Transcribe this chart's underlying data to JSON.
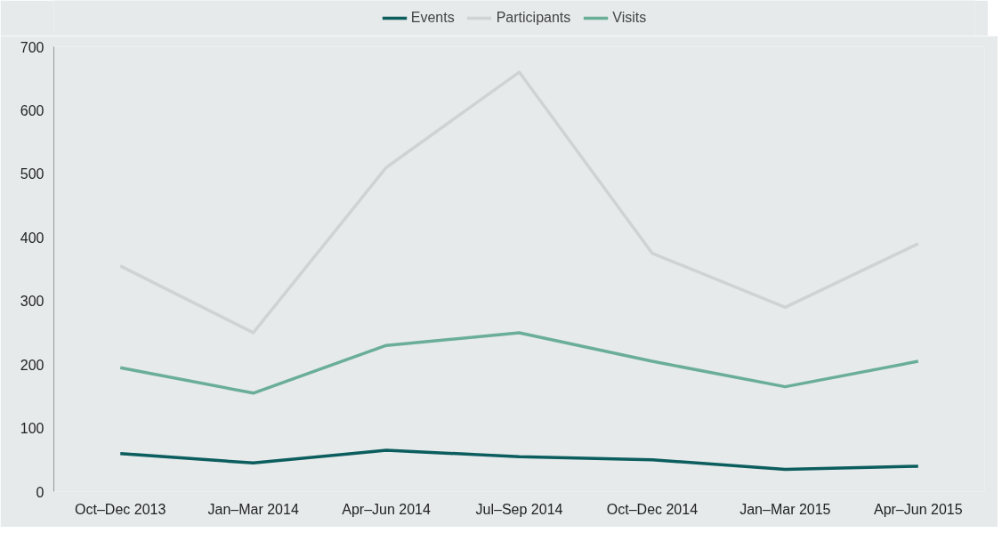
{
  "chart_data": {
    "type": "line",
    "categories": [
      "Oct–Dec 2013",
      "Jan–Mar 2014",
      "Apr–Jun 2014",
      "Jul–Sep 2014",
      "Oct–Dec 2014",
      "Jan–Mar 2015",
      "Apr–Jun 2015"
    ],
    "series": [
      {
        "name": "Events",
        "color": "#0b5d5e",
        "values": [
          60,
          45,
          65,
          55,
          50,
          35,
          40
        ]
      },
      {
        "name": "Participants",
        "color": "#cfd3d3",
        "values": [
          355,
          250,
          510,
          660,
          375,
          290,
          390
        ]
      },
      {
        "name": "Visits",
        "color": "#6aae98",
        "values": [
          195,
          155,
          230,
          250,
          205,
          165,
          205
        ]
      }
    ],
    "ylim": [
      0,
      700
    ],
    "yticks": [
      0,
      100,
      200,
      300,
      400,
      500,
      600,
      700
    ],
    "grid": false,
    "legend": "top",
    "marker": "none",
    "line_style": "solid"
  }
}
